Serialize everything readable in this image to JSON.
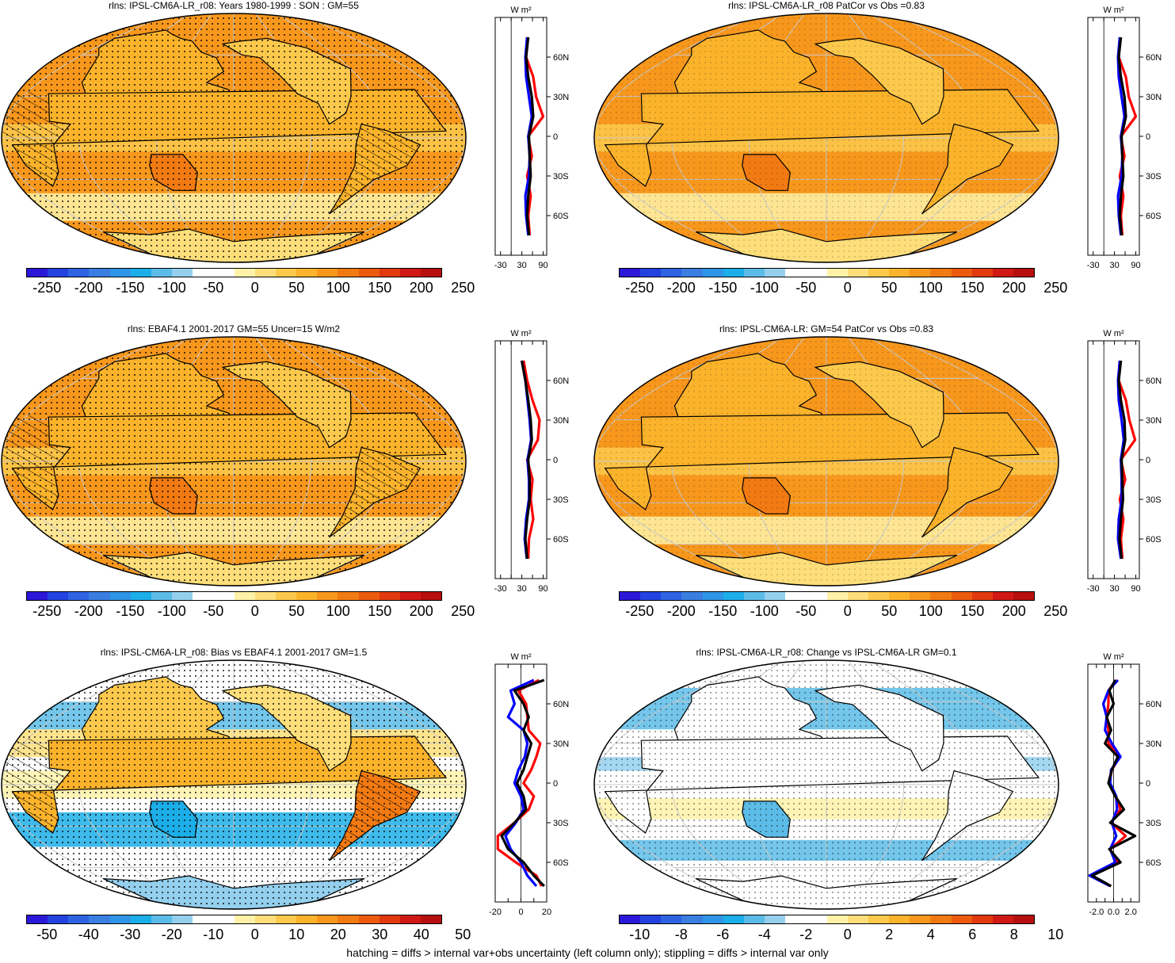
{
  "footer": "hatching = diffs > internal var+obs uncertainty (left column only); stippling = diffs > internal var only",
  "palette": [
    "#2b18d8",
    "#2243df",
    "#2e63e2",
    "#3a7ee2",
    "#2f95e6",
    "#1caee8",
    "#5cbce8",
    "#94d0ee",
    "#ffffff",
    "#ffffff",
    "#fff2a8",
    "#fede7a",
    "#fdc94c",
    "#fbb32b",
    "#f7971c",
    "#f27a12",
    "#ec5a0e",
    "#e23a0f",
    "#d01814",
    "#b70e0e"
  ],
  "zonal_colors": {
    "model": "#000000",
    "obs": "#0000ff",
    "diff": "#ff0000"
  },
  "panels": [
    {
      "id": "p1",
      "title": "rlns: IPSL-CM6A-LR_r08: Years 1980-1999 : SON : GM=55",
      "map_style": "abs",
      "hatch": true,
      "colorbar": {
        "labels": [
          "-250",
          "-200",
          "-150",
          "-100",
          "-50",
          "0",
          "50",
          "100",
          "150",
          "200",
          "250"
        ]
      },
      "zonal": {
        "units": "W m²",
        "lat_labels": [
          "60N",
          "30N",
          "0",
          "30S",
          "60S"
        ],
        "x_labels": [
          "-30",
          "30",
          "90"
        ],
        "x_ticks": [
          -30,
          0,
          30,
          60,
          90
        ],
        "xlim": [
          -45,
          100
        ]
      }
    },
    {
      "id": "p2",
      "title": "rlns: IPSL-CM6A-LR_r08 PatCor vs Obs =0.83",
      "map_style": "abs",
      "hatch": false,
      "colorbar": {
        "labels": [
          "-250",
          "-200",
          "-150",
          "-100",
          "-50",
          "0",
          "50",
          "100",
          "150",
          "200",
          "250"
        ]
      },
      "zonal": {
        "units": "W m²",
        "lat_labels": [
          "60N",
          "30N",
          "0",
          "30S",
          "60S"
        ],
        "x_labels": [
          "-30",
          "30",
          "90"
        ],
        "x_ticks": [
          -30,
          0,
          30,
          60,
          90
        ],
        "xlim": [
          -45,
          100
        ]
      }
    },
    {
      "id": "p3",
      "title": "rlns: EBAF4.1 2001-2017 GM=55 Uncer=15 W/m2",
      "map_style": "abs",
      "hatch": true,
      "colorbar": {
        "labels": [
          "-250",
          "-200",
          "-150",
          "-100",
          "-50",
          "0",
          "50",
          "100",
          "150",
          "200",
          "250"
        ]
      },
      "zonal": {
        "units": "W m²",
        "lat_labels": [
          "60N",
          "30N",
          "0",
          "30S",
          "60S"
        ],
        "x_labels": [
          "-30",
          "30",
          "90"
        ],
        "x_ticks": [
          -30,
          0,
          30,
          60,
          90
        ],
        "xlim": [
          -45,
          100
        ]
      }
    },
    {
      "id": "p4",
      "title": "rlns: IPSL-CM6A-LR: GM=54 PatCor vs Obs =0.83",
      "map_style": "abs",
      "hatch": false,
      "colorbar": {
        "labels": [
          "-250",
          "-200",
          "-150",
          "-100",
          "-50",
          "0",
          "50",
          "100",
          "150",
          "200",
          "250"
        ]
      },
      "zonal": {
        "units": "W m²",
        "lat_labels": [
          "60N",
          "30N",
          "0",
          "30S",
          "60S"
        ],
        "x_labels": [
          "-30",
          "30",
          "90"
        ],
        "x_ticks": [
          -30,
          0,
          30,
          60,
          90
        ],
        "xlim": [
          -45,
          100
        ]
      }
    },
    {
      "id": "p5",
      "title": "rlns: IPSL-CM6A-LR_r08: Bias vs EBAF4.1 2001-2017  GM=1.5",
      "map_style": "bias",
      "hatch": true,
      "colorbar": {
        "labels": [
          "-50",
          "-40",
          "-30",
          "-20",
          "-10",
          "0",
          "10",
          "20",
          "30",
          "40",
          "50"
        ]
      },
      "zonal": {
        "units": "W m²",
        "lat_labels": [
          "60N",
          "30N",
          "0",
          "30S",
          "60S"
        ],
        "x_labels": [
          "-20",
          "0",
          "20"
        ],
        "x_ticks": [
          -20,
          -10,
          0,
          10,
          20
        ],
        "xlim": [
          -20,
          20
        ]
      }
    },
    {
      "id": "p6",
      "title": "rlns: IPSL-CM6A-LR_r08: Change vs IPSL-CM6A-LR GM=0.1",
      "map_style": "change",
      "hatch": false,
      "colorbar": {
        "labels": [
          "-10",
          "-8",
          "-6",
          "-4",
          "-2",
          "0",
          "2",
          "4",
          "6",
          "8",
          "10"
        ]
      },
      "zonal": {
        "units": "W m²",
        "lat_labels": [
          "60N",
          "30N",
          "0",
          "30S",
          "60S"
        ],
        "x_labels": [
          "-2.0",
          "0.0",
          "2.0"
        ],
        "x_ticks": [
          -2,
          -1,
          0,
          1,
          2
        ],
        "xlim": [
          -3,
          3
        ]
      }
    }
  ],
  "chart_data": [
    {
      "type": "line",
      "panel": "p1",
      "xlabel": "W m²",
      "x_unit": "W m-2",
      "lat": [
        75,
        60,
        45,
        30,
        15,
        0,
        -15,
        -30,
        -45,
        -60,
        -75
      ],
      "series": [
        {
          "values": [
            48,
            42,
            48,
            58,
            62,
            50,
            52,
            55,
            48,
            45,
            50
          ]
        },
        {
          "values": [
            45,
            40,
            42,
            50,
            58,
            48,
            52,
            50,
            40,
            42,
            48
          ]
        },
        {
          "values": [
            45,
            42,
            62,
            70,
            90,
            48,
            58,
            45,
            55,
            48,
            52
          ]
        }
      ]
    },
    {
      "type": "line",
      "panel": "p2",
      "xlabel": "W m²",
      "x_unit": "W m-2",
      "lat": [
        75,
        60,
        45,
        30,
        15,
        0,
        -15,
        -30,
        -45,
        -60,
        -75
      ],
      "series": [
        {
          "values": [
            48,
            42,
            48,
            58,
            62,
            50,
            52,
            55,
            48,
            45,
            50
          ]
        },
        {
          "values": [
            45,
            40,
            42,
            50,
            58,
            48,
            52,
            50,
            40,
            42,
            48
          ]
        },
        {
          "values": [
            45,
            42,
            62,
            70,
            90,
            48,
            58,
            45,
            55,
            48,
            52
          ]
        }
      ]
    },
    {
      "type": "line",
      "panel": "p3",
      "xlabel": "W m²",
      "x_unit": "W m-2",
      "lat": [
        75,
        60,
        45,
        30,
        15,
        0,
        -15,
        -30,
        -45,
        -60,
        -75
      ],
      "series": [
        {
          "values": [
            30,
            40,
            48,
            55,
            58,
            48,
            52,
            52,
            45,
            40,
            45
          ]
        },
        {
          "values": [
            30,
            40,
            46,
            52,
            56,
            46,
            50,
            50,
            42,
            38,
            44
          ]
        },
        {
          "values": [
            35,
            45,
            60,
            80,
            75,
            45,
            60,
            55,
            62,
            50,
            48
          ]
        }
      ]
    },
    {
      "type": "line",
      "panel": "p4",
      "xlabel": "W m²",
      "x_unit": "W m-2",
      "lat": [
        75,
        60,
        45,
        30,
        15,
        0,
        -15,
        -30,
        -45,
        -60,
        -75
      ],
      "series": [
        {
          "values": [
            48,
            42,
            48,
            58,
            60,
            50,
            52,
            54,
            48,
            44,
            50
          ]
        },
        {
          "values": [
            45,
            40,
            42,
            50,
            56,
            48,
            50,
            50,
            42,
            40,
            48
          ]
        },
        {
          "values": [
            45,
            42,
            62,
            72,
            88,
            48,
            60,
            45,
            55,
            48,
            52
          ]
        }
      ]
    },
    {
      "type": "line",
      "panel": "p5",
      "xlabel": "W m²",
      "x_unit": "W m-2",
      "lat": [
        78,
        70,
        60,
        50,
        40,
        30,
        20,
        10,
        0,
        -10,
        -20,
        -30,
        -40,
        -50,
        -60,
        -70,
        -78
      ],
      "series": [
        {
          "values": [
            18,
            -5,
            2,
            6,
            2,
            8,
            5,
            2,
            -3,
            2,
            4,
            -5,
            -15,
            -10,
            2,
            10,
            18
          ]
        },
        {
          "values": [
            10,
            -8,
            -5,
            -10,
            2,
            5,
            3,
            -2,
            -5,
            0,
            2,
            -4,
            -12,
            -8,
            0,
            5,
            12
          ]
        },
        {
          "values": [
            14,
            -2,
            4,
            5,
            6,
            15,
            12,
            8,
            2,
            10,
            6,
            -5,
            -18,
            -18,
            -4,
            12,
            16
          ]
        }
      ]
    },
    {
      "type": "line",
      "panel": "p6",
      "xlabel": "W m²",
      "x_unit": "W m-2",
      "lat": [
        78,
        70,
        60,
        50,
        40,
        30,
        20,
        10,
        0,
        -10,
        -20,
        -30,
        -40,
        -50,
        -60,
        -70,
        -78
      ],
      "series": [
        {
          "values": [
            0.2,
            -0.5,
            0.0,
            -0.8,
            -0.3,
            -1.0,
            0.5,
            -0.2,
            -0.6,
            0.2,
            1.2,
            -0.4,
            2.5,
            -0.5,
            0.8,
            -2.5,
            -0.3
          ]
        },
        {
          "values": [
            0.5,
            -0.6,
            -1.2,
            -0.8,
            -1.0,
            -0.2,
            0.8,
            -0.3,
            -0.4,
            0.3,
            0.4,
            -0.2,
            0.3,
            -0.4,
            0.2,
            -2.8,
            -0.4
          ]
        },
        {
          "values": [
            0.3,
            -0.6,
            -0.6,
            -0.8,
            -0.6,
            -0.6,
            0.7,
            -0.2,
            -0.5,
            0.2,
            0.8,
            -0.3,
            1.4,
            -0.4,
            0.5,
            -2.6,
            -0.3
          ]
        }
      ]
    }
  ]
}
